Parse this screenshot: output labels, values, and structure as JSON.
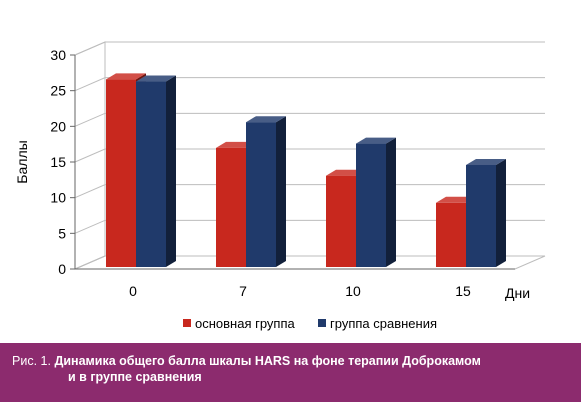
{
  "figure": {
    "caption_prefix": "Рис. 1.",
    "caption_line1": "Динамика общего балла шкалы HARS на фоне терапии Доброкамом",
    "caption_line2": "и в группе сравнения"
  },
  "colors": {
    "series_1": "#c8281e",
    "series_2": "#203a6b",
    "caption_band": "#8c2b6e",
    "grid": "#bdbdbd"
  },
  "chart_data": {
    "type": "bar",
    "style": "3d-clustered",
    "categories": [
      "0",
      "7",
      "10",
      "15"
    ],
    "series": [
      {
        "name": "основная группа",
        "values": [
          26.3,
          16.7,
          12.8,
          9.0
        ]
      },
      {
        "name": "группа сравнения",
        "values": [
          26.0,
          20.3,
          17.3,
          14.3
        ]
      }
    ],
    "y_ticks": [
      "0",
      "5",
      "10",
      "15",
      "20",
      "25",
      "30"
    ],
    "ylim": [
      0,
      30
    ],
    "ylabel": "Баллы",
    "xlabel": "Дни",
    "grid": true,
    "legend_position": "bottom"
  }
}
